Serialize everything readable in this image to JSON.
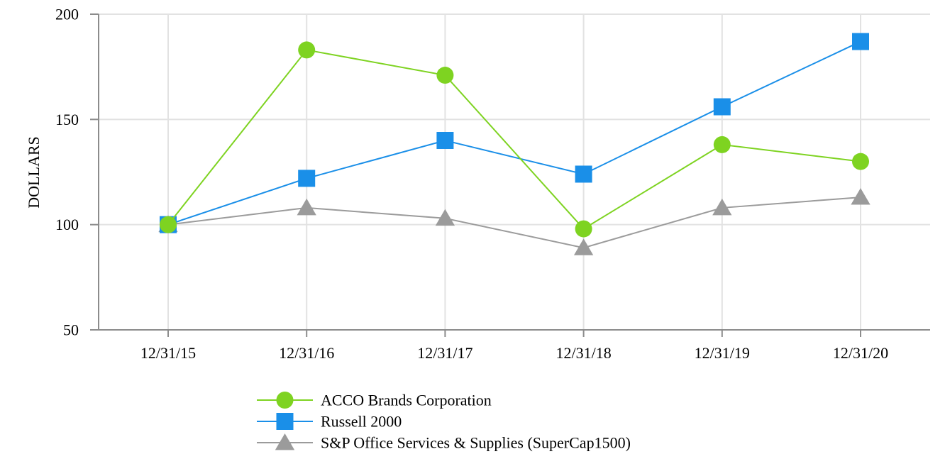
{
  "chart_data": {
    "type": "line",
    "title": "",
    "xlabel": "",
    "ylabel": "DOLLARS",
    "categories": [
      "12/31/15",
      "12/31/16",
      "12/31/17",
      "12/31/18",
      "12/31/19",
      "12/31/20"
    ],
    "ylim": [
      50,
      200
    ],
    "yticks": [
      50,
      100,
      150,
      200
    ],
    "grid": true,
    "legend_position": "bottom-center",
    "series": [
      {
        "name": "ACCO Brands Corporation",
        "color": "#7ed321",
        "marker": "circle",
        "values": [
          100,
          183,
          171,
          98,
          138,
          130
        ]
      },
      {
        "name": "Russell 2000",
        "color": "#1a8fe8",
        "marker": "square",
        "values": [
          100,
          122,
          140,
          124,
          156,
          187
        ]
      },
      {
        "name": "S&P Office Services & Supplies (SuperCap1500)",
        "color": "#9b9b9b",
        "marker": "triangle",
        "values": [
          100,
          108,
          103,
          89,
          108,
          113
        ]
      }
    ]
  }
}
